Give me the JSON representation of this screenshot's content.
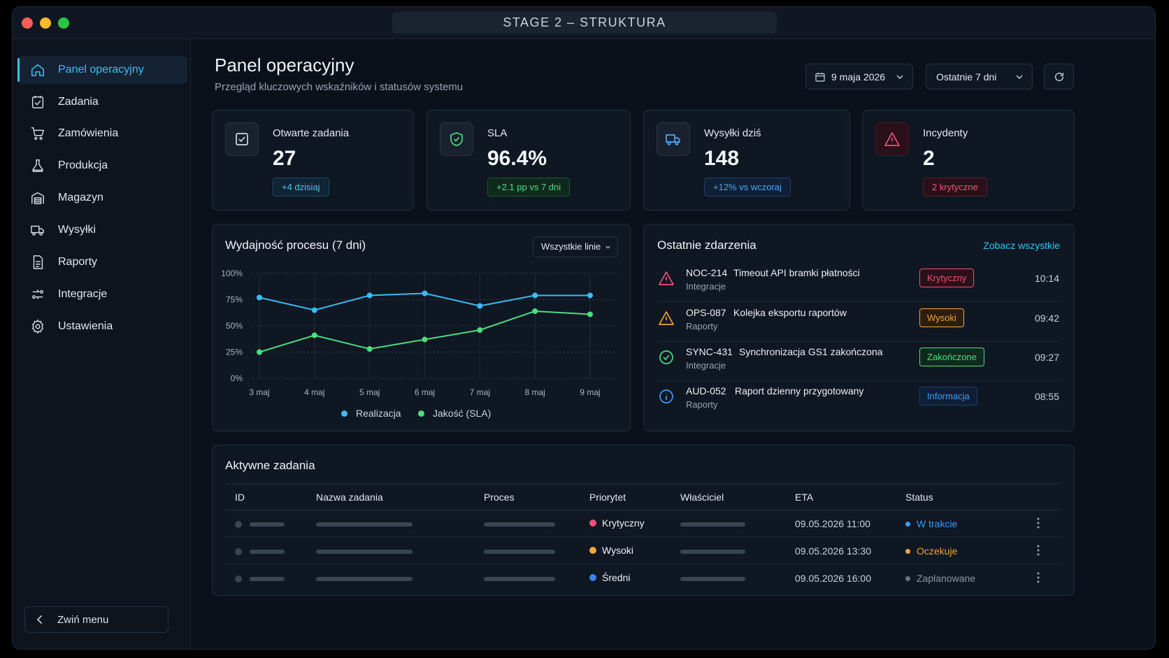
{
  "window": {
    "title": "STAGE 2 – STRUKTURA"
  },
  "sidebar": {
    "items": [
      {
        "label": "Panel operacyjny",
        "icon": "home-icon",
        "active": true
      },
      {
        "label": "Zadania",
        "icon": "task-check-icon"
      },
      {
        "label": "Zamówienia",
        "icon": "cart-icon"
      },
      {
        "label": "Produkcja",
        "icon": "flask-icon"
      },
      {
        "label": "Magazyn",
        "icon": "warehouse-icon"
      },
      {
        "label": "Wysyłki",
        "icon": "truck-icon"
      },
      {
        "label": "Raporty",
        "icon": "report-icon"
      },
      {
        "label": "Integracje",
        "icon": "integration-icon"
      },
      {
        "label": "Ustawienia",
        "icon": "gear-icon"
      }
    ],
    "collapse_label": "Zwiń menu"
  },
  "header": {
    "title": "Panel operacyjny",
    "subtitle": "Przegląd kluczowych wskaźników i statusów systemu",
    "date_value": "9 maja 2026",
    "range_value": "Ostatnie 7 dni"
  },
  "kpis": [
    {
      "label": "Otwarte zadania",
      "value": "27",
      "badge": "+4 dzisiaj",
      "badge_tone": "blue",
      "icon": "task-check-icon"
    },
    {
      "label": "SLA",
      "value": "96.4%",
      "badge": "+2.1 pp vs 7 dni",
      "badge_tone": "green",
      "icon": "shield-check-icon"
    },
    {
      "label": "Wysyłki dziś",
      "value": "148",
      "badge": "+12% vs wczoraj",
      "badge_tone": "blue",
      "icon": "truck-icon"
    },
    {
      "label": "Incydenty",
      "value": "2",
      "badge": "2 krytyczne",
      "badge_tone": "red",
      "icon": "warning-icon"
    }
  ],
  "chart_panel": {
    "title": "Wydajność procesu (7 dni)",
    "filter_value": "Wszystkie linie"
  },
  "chart_data": {
    "type": "line",
    "title": "Wydajność procesu (7 dni)",
    "x": [
      "3 maj",
      "4 maj",
      "5 maj",
      "6 maj",
      "7 maj",
      "8 maj",
      "9 maj"
    ],
    "y_ticks": [
      "100%",
      "75%",
      "50%",
      "25%",
      "0%"
    ],
    "ylim": [
      0,
      100
    ],
    "grid": true,
    "legend_position": "bottom",
    "series": [
      {
        "name": "Realizacja",
        "color": "#38bdf8",
        "values": [
          77,
          65,
          79,
          81,
          69,
          79,
          79
        ]
      },
      {
        "name": "Jakość (SLA)",
        "color": "#4ade80",
        "values": [
          25,
          41,
          28,
          37,
          46,
          64,
          61
        ]
      }
    ]
  },
  "events": {
    "title": "Ostatnie zdarzenia",
    "see_all": "Zobacz wszystkie",
    "items": [
      {
        "id": "NOC-214",
        "desc": "Timeout API bramki płatności",
        "category": "Integracje",
        "badge": "Krytyczny",
        "tone": "red",
        "time": "10:14",
        "icon": "warning-icon"
      },
      {
        "id": "OPS-087",
        "desc": "Kolejka eksportu raportów",
        "category": "Raporty",
        "badge": "Wysoki",
        "tone": "orange",
        "time": "09:42",
        "icon": "warning-icon"
      },
      {
        "id": "SYNC-431",
        "desc": "Synchronizacja GS1 zakończona",
        "category": "Integracje",
        "badge": "Zakończone",
        "tone": "green",
        "time": "09:27",
        "icon": "check-circle-icon"
      },
      {
        "id": "AUD-052",
        "desc": "Raport dzienny przygotowany",
        "category": "Raporty",
        "badge": "Informacja",
        "tone": "blue",
        "time": "08:55",
        "icon": "info-icon"
      }
    ]
  },
  "tasks": {
    "title": "Aktywne zadania",
    "columns": [
      "ID",
      "Nazwa zadania",
      "Proces",
      "Priorytet",
      "Właściciel",
      "ETA",
      "Status"
    ],
    "rows": [
      {
        "priority": "Krytyczny",
        "priority_color": "#f0507a",
        "eta": "09.05.2026 11:00",
        "status": "W trakcie",
        "status_color": "#3b9cf5"
      },
      {
        "priority": "Wysoki",
        "priority_color": "#f3a43a",
        "eta": "09.05.2026 13:30",
        "status": "Oczekuje",
        "status_color": "#f3a43a"
      },
      {
        "priority": "Średni",
        "priority_color": "#3b82f6",
        "eta": "09.05.2026 16:00",
        "status": "Zaplanowane",
        "status_color": "#8b96a5"
      }
    ]
  },
  "colors": {
    "accent": "#37c3f0",
    "background": "#0b111a",
    "panel": "#0f1722"
  }
}
